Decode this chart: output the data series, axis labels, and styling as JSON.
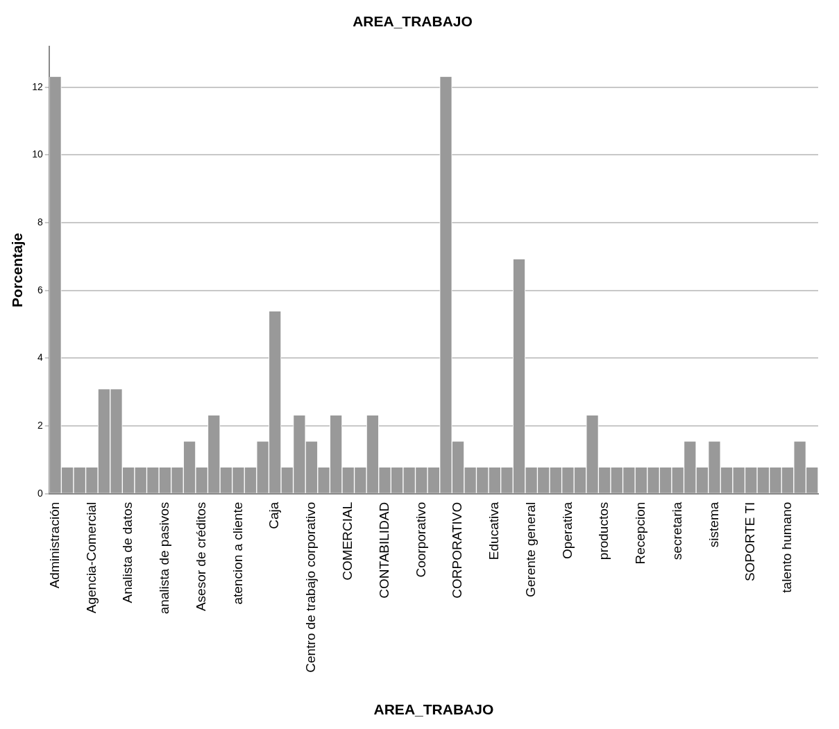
{
  "chart_data": {
    "type": "bar",
    "title": "AREA_TRABAJO",
    "xlabel": "AREA_TRABAJO",
    "ylabel": "Porcentaje",
    "categories": [
      "Administración",
      null,
      null,
      "Agencia-Comercial",
      null,
      null,
      "Analista de datos",
      null,
      null,
      "analista de pasivos",
      null,
      null,
      "Asesor de créditos",
      null,
      null,
      "atencion a cliente",
      null,
      null,
      "Caja",
      null,
      null,
      "Centro de trabajo corporativo",
      null,
      null,
      "COMERCIAL",
      null,
      null,
      "CONTABILIDAD",
      null,
      null,
      "Coorporativo",
      null,
      null,
      "CORPORATIVO",
      null,
      null,
      "Educativa",
      null,
      null,
      "Gerente general",
      null,
      null,
      "Operativa",
      null,
      null,
      "productos",
      null,
      null,
      "Recepcion",
      null,
      null,
      "secretaria",
      null,
      null,
      "sistema",
      null,
      null,
      "SOPORTE TI",
      null,
      null,
      "talento humano",
      null,
      null
    ],
    "values": [
      12.31,
      0.77,
      0.77,
      0.77,
      3.08,
      3.08,
      0.77,
      0.77,
      0.77,
      0.77,
      0.77,
      1.54,
      0.77,
      2.31,
      0.77,
      0.77,
      0.77,
      1.54,
      5.38,
      0.77,
      2.31,
      1.54,
      0.77,
      2.31,
      0.77,
      0.77,
      2.31,
      0.77,
      0.77,
      0.77,
      0.77,
      0.77,
      12.31,
      1.54,
      0.77,
      0.77,
      0.77,
      0.77,
      6.92,
      0.77,
      0.77,
      0.77,
      0.77,
      0.77,
      2.31,
      0.77,
      0.77,
      0.77,
      0.77,
      0.77,
      0.77,
      0.77,
      1.54,
      0.77,
      1.54,
      0.77,
      0.77,
      0.77,
      0.77,
      0.77,
      0.77,
      1.54,
      0.77
    ],
    "color": "#999999",
    "ylim": [
      0,
      13.2
    ],
    "yticks": [
      0,
      2,
      4,
      6,
      8,
      10,
      12
    ],
    "grid": "y",
    "legend": false
  }
}
